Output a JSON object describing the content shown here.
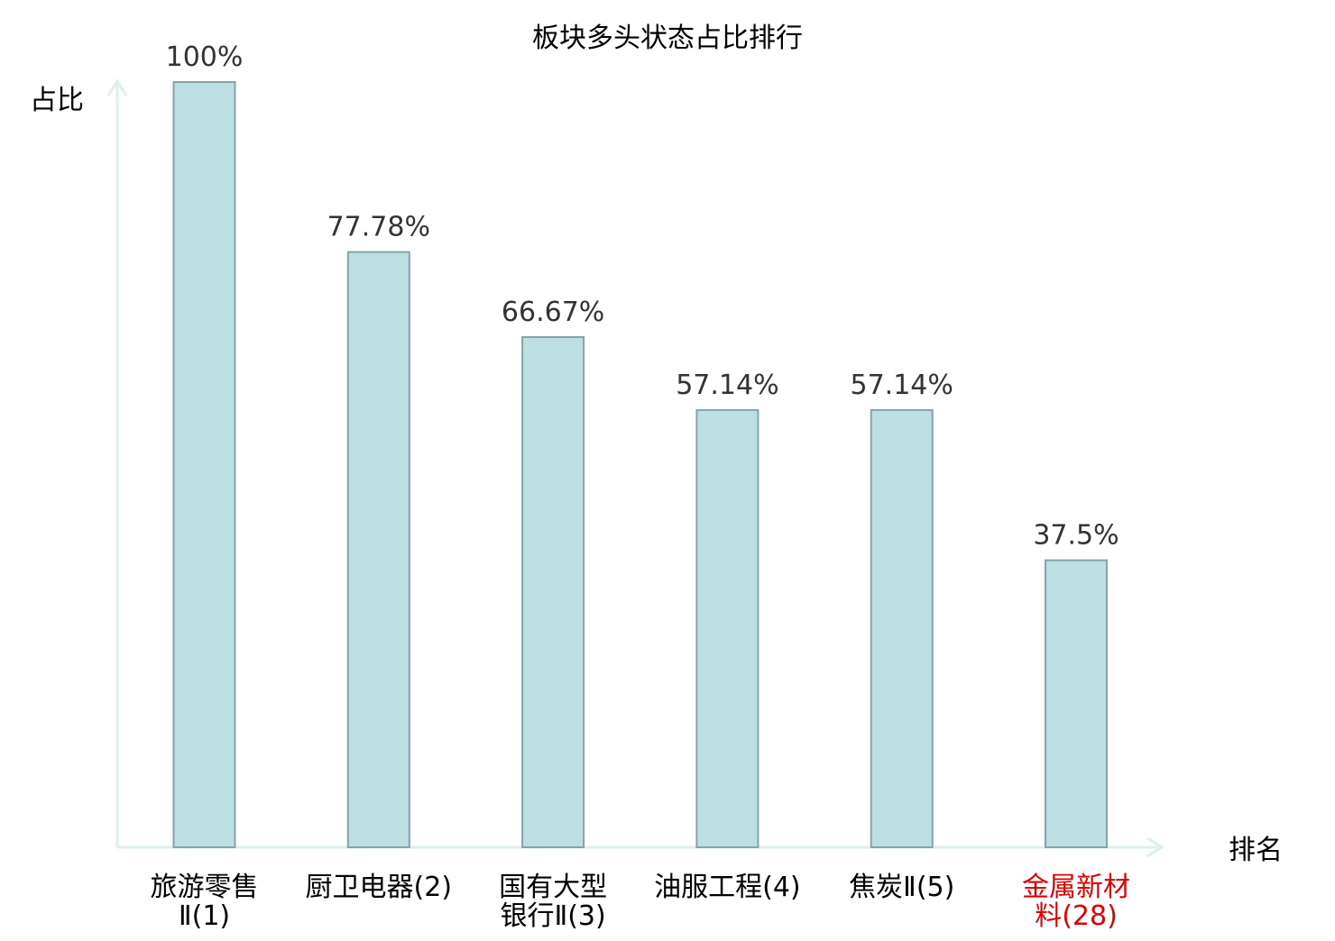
{
  "chart_data": {
    "type": "bar",
    "title": "板块多头状态占比排行",
    "ylabel": "占比",
    "xlabel": "排名",
    "ylim": [
      0,
      100
    ],
    "grid": false,
    "categories": [
      {
        "lines": [
          "旅游零售",
          "Ⅱ(1)"
        ],
        "highlight": false
      },
      {
        "lines": [
          "厨卫电器(2)"
        ],
        "highlight": false
      },
      {
        "lines": [
          "国有大型",
          "银行Ⅱ(3)"
        ],
        "highlight": false
      },
      {
        "lines": [
          "油服工程(4)"
        ],
        "highlight": false
      },
      {
        "lines": [
          "焦炭Ⅱ(5)"
        ],
        "highlight": false
      },
      {
        "lines": [
          "金属新材",
          "料(28)"
        ],
        "highlight": true
      }
    ],
    "values": [
      100,
      77.78,
      66.67,
      57.14,
      57.14,
      37.5
    ],
    "value_labels": [
      "100%",
      "77.78%",
      "66.67%",
      "57.14%",
      "57.14%",
      "37.5%"
    ]
  },
  "colors": {
    "bar_fill": "#bce0e2",
    "bar_stroke": "#86a4a8",
    "axis": "#dcf0ec",
    "text": "#000000",
    "value_text": "#333333",
    "highlight": "#e00000"
  }
}
